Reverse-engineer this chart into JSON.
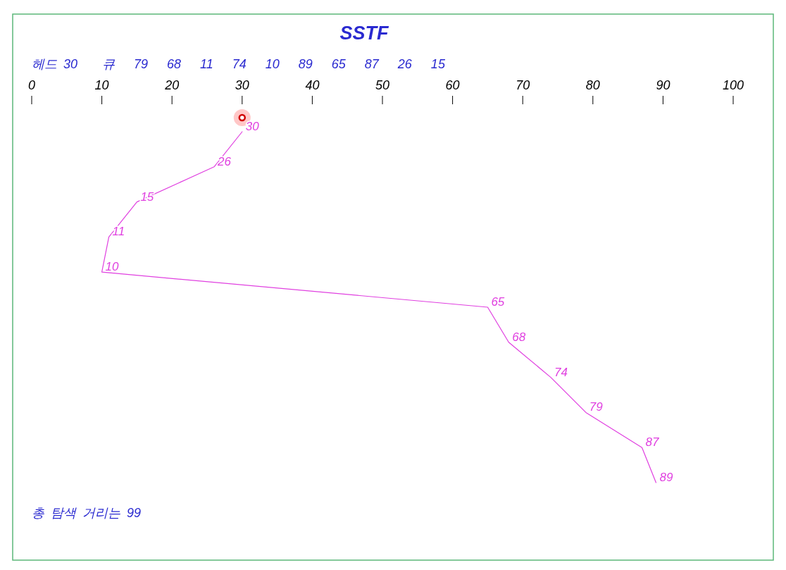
{
  "chart_data": {
    "type": "line",
    "title": "SSTF",
    "orientation": "horizontal",
    "xlim": [
      0,
      100
    ],
    "xticks": [
      0,
      10,
      20,
      30,
      40,
      50,
      60,
      70,
      80,
      90,
      100
    ],
    "categories": [
      null,
      null,
      null,
      null,
      null,
      null,
      null,
      null,
      null,
      null,
      null
    ],
    "series": [
      {
        "color": "#e040e0",
        "values": [
          30,
          26,
          15,
          11,
          10,
          65,
          68,
          74,
          79,
          87,
          89
        ]
      }
    ],
    "data_labels": true,
    "annotations": [
      "헤드 30",
      "큐 79 68 11 74 10 89 65 87 26 15",
      "총 탐색 거리는 99"
    ]
  }
}
